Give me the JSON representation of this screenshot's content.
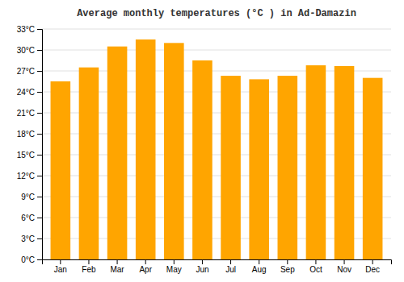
{
  "chart_data": {
    "type": "bar",
    "title": "Average monthly temperatures (°C ) in Ad-Damazin",
    "categories": [
      "Jan",
      "Feb",
      "Mar",
      "Apr",
      "May",
      "Jun",
      "Jul",
      "Aug",
      "Sep",
      "Oct",
      "Nov",
      "Dec"
    ],
    "values": [
      25.5,
      27.5,
      30.5,
      31.5,
      31.0,
      28.5,
      26.3,
      25.8,
      26.3,
      27.8,
      27.7,
      26.0
    ],
    "color": "#FFA500",
    "ylim": [
      0,
      33
    ],
    "yticks": [
      {
        "value": 0,
        "label": "0°C"
      },
      {
        "value": 3,
        "label": "3°C"
      },
      {
        "value": 6,
        "label": "6°C"
      },
      {
        "value": 9,
        "label": "9°C"
      },
      {
        "value": 12,
        "label": "12°C"
      },
      {
        "value": 15,
        "label": "15°C"
      },
      {
        "value": 18,
        "label": "18°C"
      },
      {
        "value": 21,
        "label": "21°C"
      },
      {
        "value": 24,
        "label": "24°C"
      },
      {
        "value": 27,
        "label": "27°C"
      },
      {
        "value": 30,
        "label": "30°C"
      },
      {
        "value": 33,
        "label": "33°C"
      }
    ],
    "grid": true
  }
}
